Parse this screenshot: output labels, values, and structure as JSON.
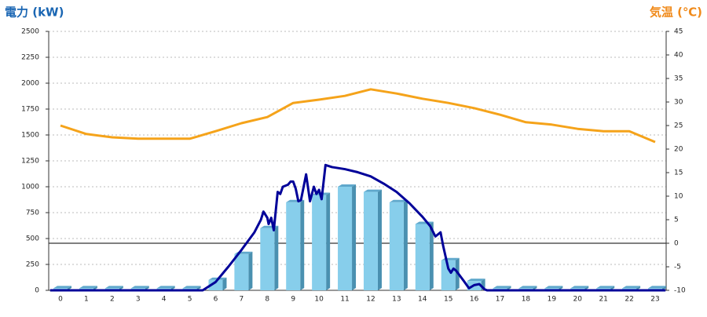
{
  "chart_data": {
    "type": "bar",
    "left_axis_label": "電力 (kW)",
    "right_axis_label": "気温 (℃)",
    "categories": [
      "0",
      "1",
      "2",
      "3",
      "4",
      "5",
      "6",
      "7",
      "8",
      "9",
      "10",
      "11",
      "12",
      "13",
      "14",
      "15",
      "16",
      "17",
      "18",
      "19",
      "20",
      "21",
      "22",
      "23"
    ],
    "ylim": [
      0,
      2500
    ],
    "yticks": [
      0,
      250,
      500,
      750,
      1000,
      1250,
      1500,
      1750,
      2000,
      2250,
      2500
    ],
    "y2lim": [
      -10,
      45
    ],
    "y2ticks": [
      -10,
      -5,
      0,
      5,
      10,
      15,
      20,
      25,
      30,
      35,
      40,
      45
    ],
    "grid": true,
    "zero_line": 0,
    "series": [
      {
        "type": "bar",
        "color": "#87ceeb",
        "values": [
          20,
          20,
          20,
          20,
          20,
          20,
          100,
          350,
          600,
          850,
          920,
          1000,
          950,
          850,
          640,
          290,
          90,
          20,
          20,
          20,
          20,
          20,
          20,
          20
        ]
      },
      {
        "type": "line",
        "color": "#000099",
        "x": [
          -0.4,
          5.5,
          6.0,
          6.5,
          7.0,
          7.5,
          7.75,
          7.85,
          8.0,
          8.05,
          8.15,
          8.25,
          8.4,
          8.5,
          8.6,
          8.8,
          8.9,
          9.0,
          9.1,
          9.2,
          9.3,
          9.5,
          9.65,
          9.8,
          9.9,
          10.0,
          10.1,
          10.25,
          10.5,
          11.0,
          11.5,
          12.0,
          12.5,
          13.0,
          13.5,
          14.0,
          14.3,
          14.5,
          14.7,
          14.8,
          15.0,
          15.1,
          15.2,
          15.3,
          15.6,
          15.8,
          16.0,
          16.2,
          16.4,
          16.5,
          23.4
        ],
        "values": [
          0,
          0,
          80,
          230,
          390,
          560,
          680,
          760,
          700,
          640,
          700,
          580,
          950,
          930,
          1000,
          1020,
          1050,
          1050,
          980,
          860,
          870,
          1120,
          860,
          1000,
          930,
          970,
          880,
          1210,
          1190,
          1170,
          1140,
          1100,
          1030,
          950,
          840,
          710,
          620,
          520,
          560,
          430,
          210,
          170,
          210,
          190,
          90,
          20,
          50,
          60,
          10,
          0,
          0
        ]
      },
      {
        "type": "line",
        "axis": "y2",
        "color": "#f5a31a",
        "values": [
          25,
          23.2,
          22.5,
          22.2,
          22.2,
          22.2,
          23.8,
          25.5,
          26.8,
          29.8,
          30.5,
          31.3,
          32.7,
          31.8,
          30.7,
          29.8,
          28.7,
          27.3,
          25.7,
          25.2,
          24.3,
          23.8,
          23.8,
          21.5
        ]
      }
    ]
  }
}
